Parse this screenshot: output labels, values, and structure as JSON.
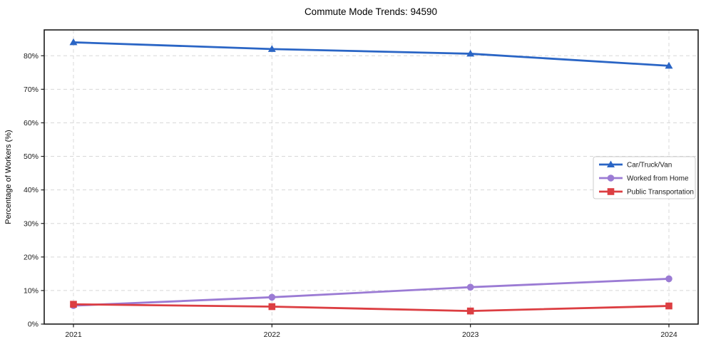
{
  "chart_data": {
    "type": "line",
    "title": "Commute Mode Trends: 94590",
    "xlabel": "",
    "ylabel": "Percentage of Workers (%)",
    "categories": [
      "2021",
      "2022",
      "2023",
      "2024"
    ],
    "series": [
      {
        "name": "Car/Truck/Van",
        "marker": "triangle",
        "color": "#2a65c5",
        "values": [
          84.0,
          82.0,
          80.6,
          77.0
        ]
      },
      {
        "name": "Worked from Home",
        "marker": "circle",
        "color": "#9b7bd4",
        "values": [
          5.5,
          8.0,
          11.0,
          13.5
        ]
      },
      {
        "name": "Public Transportation",
        "marker": "square",
        "color": "#dc3e42",
        "values": [
          5.9,
          5.2,
          3.9,
          5.4
        ]
      }
    ],
    "ylim": [
      0,
      87.7
    ],
    "yticks": [
      0,
      10,
      20,
      30,
      40,
      50,
      60,
      70,
      80
    ],
    "ytick_suffix": "%",
    "grid": "dashed",
    "legend_position": "right-center"
  },
  "colors": {
    "grid": "#d8d8d8",
    "frame": "#1a1a1a",
    "text": "#1a1a1a",
    "legend_bg": "#ffffff",
    "legend_border": "#cccccc"
  }
}
